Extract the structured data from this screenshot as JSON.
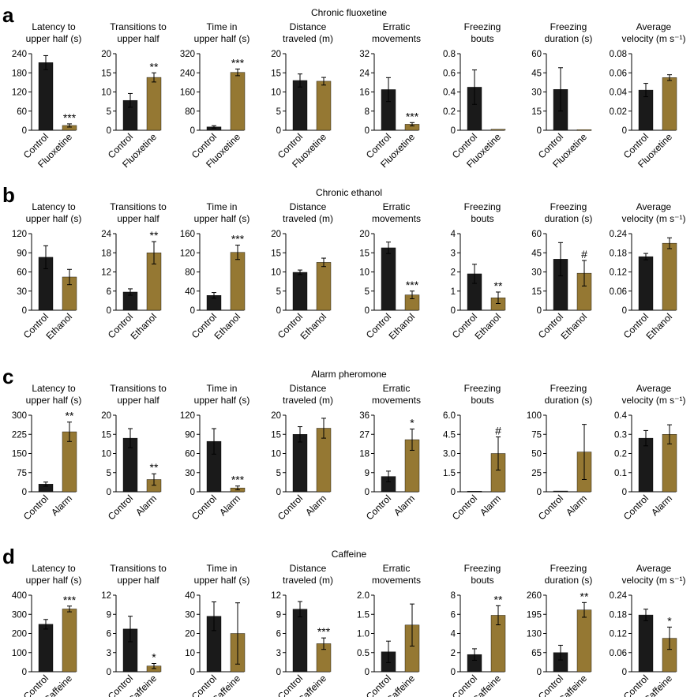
{
  "colors": {
    "control": "#1a1a1a",
    "treatment": "#957833"
  },
  "chart_data": [
    {
      "panel": "a",
      "title": "Chronic fluoxetine",
      "categories": [
        "Control",
        "Fluoxetine"
      ],
      "charts": [
        {
          "type": "bar",
          "title": "Latency to\nupper half (s)",
          "ylim": [
            0,
            240
          ],
          "ticks": [
            "0",
            "60",
            "120",
            "180",
            "240"
          ],
          "values": [
            212,
            15
          ],
          "errors": [
            22,
            5
          ],
          "annotations": [
            "",
            "***"
          ]
        },
        {
          "type": "bar",
          "title": "Transitions to\nupper half",
          "ylim": [
            0,
            20
          ],
          "ticks": [
            "0",
            "5",
            "10",
            "15",
            "20"
          ],
          "values": [
            7.8,
            13.8
          ],
          "errors": [
            1.8,
            1.2
          ],
          "annotations": [
            "",
            "**"
          ]
        },
        {
          "type": "bar",
          "title": "Time in\nupper half (s)",
          "ylim": [
            0,
            320
          ],
          "ticks": [
            "0",
            "80",
            "160",
            "240",
            "320"
          ],
          "values": [
            14,
            242
          ],
          "errors": [
            5,
            14
          ],
          "annotations": [
            "",
            "***"
          ]
        },
        {
          "type": "bar",
          "title": "Distance\ntraveled (m)",
          "ylim": [
            0,
            20
          ],
          "ticks": [
            "0",
            "5",
            "10",
            "15",
            "20"
          ],
          "values": [
            13,
            12.8
          ],
          "errors": [
            1.7,
            1.0
          ],
          "annotations": [
            "",
            ""
          ]
        },
        {
          "type": "bar",
          "title": "Erratic\nmovements",
          "ylim": [
            0,
            32
          ],
          "ticks": [
            "0",
            "8",
            "16",
            "24",
            "32"
          ],
          "values": [
            17,
            2.5
          ],
          "errors": [
            5,
            0.7
          ],
          "annotations": [
            "",
            "***"
          ]
        },
        {
          "type": "bar",
          "title": "Freezing\nbouts",
          "ylim": [
            0,
            0.8
          ],
          "ticks": [
            "0",
            "0.2",
            "0.4",
            "0.6",
            "0.8"
          ],
          "values": [
            0.45,
            0.01
          ],
          "errors": [
            0.18,
            0
          ],
          "annotations": [
            "",
            ""
          ]
        },
        {
          "type": "bar",
          "title": "Freezing\nduration (s)",
          "ylim": [
            0,
            60
          ],
          "ticks": [
            "0",
            "15",
            "30",
            "45",
            "60"
          ],
          "values": [
            32,
            0.5
          ],
          "errors": [
            17,
            0
          ],
          "annotations": [
            "",
            ""
          ]
        },
        {
          "type": "bar",
          "title": "Average\nvelocity (m s⁻¹)",
          "ylim": [
            0,
            0.08
          ],
          "ticks": [
            "0",
            "0.02",
            "0.04",
            "0.06",
            "0.08"
          ],
          "values": [
            0.042,
            0.055
          ],
          "errors": [
            0.007,
            0.003
          ],
          "annotations": [
            "",
            ""
          ]
        }
      ]
    },
    {
      "panel": "b",
      "title": "Chronic ethanol",
      "categories": [
        "Control",
        "Ethanol"
      ],
      "charts": [
        {
          "type": "bar",
          "title": "Latency to\nupper half (s)",
          "ylim": [
            0,
            120
          ],
          "ticks": [
            "0",
            "30",
            "60",
            "90",
            "120"
          ],
          "values": [
            83,
            52
          ],
          "errors": [
            18,
            12
          ],
          "annotations": [
            "",
            ""
          ]
        },
        {
          "type": "bar",
          "title": "Transitions to\nupper half",
          "ylim": [
            0,
            24
          ],
          "ticks": [
            "0",
            "6",
            "12",
            "18",
            "24"
          ],
          "values": [
            5.7,
            18
          ],
          "errors": [
            1.0,
            3.5
          ],
          "annotations": [
            "",
            "**"
          ]
        },
        {
          "type": "bar",
          "title": "Time in\nupper half (s)",
          "ylim": [
            0,
            160
          ],
          "ticks": [
            "0",
            "40",
            "80",
            "120",
            "160"
          ],
          "values": [
            31,
            121
          ],
          "errors": [
            6,
            15
          ],
          "annotations": [
            "",
            "***"
          ]
        },
        {
          "type": "bar",
          "title": "Distance\ntraveled (m)",
          "ylim": [
            0,
            20
          ],
          "ticks": [
            "0",
            "5",
            "10",
            "15",
            "20"
          ],
          "values": [
            9.9,
            12.5
          ],
          "errors": [
            0.6,
            1.1
          ],
          "annotations": [
            "",
            ""
          ]
        },
        {
          "type": "bar",
          "title": "Erratic\nmovements",
          "ylim": [
            0,
            20
          ],
          "ticks": [
            "0",
            "5",
            "10",
            "15",
            "20"
          ],
          "values": [
            16.3,
            4.0
          ],
          "errors": [
            1.5,
            1.0
          ],
          "annotations": [
            "",
            "***"
          ]
        },
        {
          "type": "bar",
          "title": "Freezing\nbouts",
          "ylim": [
            0,
            4
          ],
          "ticks": [
            "0",
            "1",
            "2",
            "3",
            "4"
          ],
          "values": [
            1.9,
            0.65
          ],
          "errors": [
            0.5,
            0.3
          ],
          "annotations": [
            "",
            "**"
          ]
        },
        {
          "type": "bar",
          "title": "Freezing\nduration (s)",
          "ylim": [
            0,
            60
          ],
          "ticks": [
            "0",
            "15",
            "30",
            "45",
            "60"
          ],
          "values": [
            40,
            29
          ],
          "errors": [
            13,
            10
          ],
          "annotations": [
            "",
            "#"
          ]
        },
        {
          "type": "bar",
          "title": "Average\nvelocity (m s⁻¹)",
          "ylim": [
            0,
            0.24
          ],
          "ticks": [
            "0",
            "0.06",
            "0.12",
            "0.18",
            "0.24"
          ],
          "values": [
            0.168,
            0.21
          ],
          "errors": [
            0.01,
            0.017
          ],
          "annotations": [
            "",
            ""
          ]
        }
      ]
    },
    {
      "panel": "c",
      "title": "Alarm pheromone",
      "categories": [
        "Control",
        "Alarm"
      ],
      "charts": [
        {
          "type": "bar",
          "title": "Latency to\nupper half (s)",
          "ylim": [
            0,
            300
          ],
          "ticks": [
            "0",
            "75",
            "150",
            "225",
            "300"
          ],
          "values": [
            30,
            235
          ],
          "errors": [
            8,
            38
          ],
          "annotations": [
            "",
            "**"
          ]
        },
        {
          "type": "bar",
          "title": "Transitions to\nupper half",
          "ylim": [
            0,
            20
          ],
          "ticks": [
            "0",
            "5",
            "10",
            "15",
            "20"
          ],
          "values": [
            14,
            3.2
          ],
          "errors": [
            2.5,
            1.5
          ],
          "annotations": [
            "",
            "**"
          ]
        },
        {
          "type": "bar",
          "title": "Time in\nupper half (s)",
          "ylim": [
            0,
            120
          ],
          "ticks": [
            "0",
            "30",
            "60",
            "90",
            "120"
          ],
          "values": [
            79,
            6
          ],
          "errors": [
            20,
            3
          ],
          "annotations": [
            "",
            "***"
          ]
        },
        {
          "type": "bar",
          "title": "Distance\ntraveled (m)",
          "ylim": [
            0,
            20
          ],
          "ticks": [
            "0",
            "5",
            "10",
            "15",
            "20"
          ],
          "values": [
            15,
            16.6
          ],
          "errors": [
            2,
            2.6
          ],
          "annotations": [
            "",
            ""
          ]
        },
        {
          "type": "bar",
          "title": "Erratic\nmovements",
          "ylim": [
            0,
            36
          ],
          "ticks": [
            "0",
            "9",
            "18",
            "27",
            "36"
          ],
          "values": [
            7.2,
            24.5
          ],
          "errors": [
            2.5,
            5
          ],
          "annotations": [
            "",
            "*"
          ]
        },
        {
          "type": "bar",
          "title": "Freezing\nbouts",
          "ylim": [
            0,
            6.0
          ],
          "ticks": [
            "0",
            "1.5",
            "3.0",
            "4.5",
            "6.0"
          ],
          "values": [
            0.05,
            3.0
          ],
          "errors": [
            0,
            1.3
          ],
          "annotations": [
            "",
            "#"
          ]
        },
        {
          "type": "bar",
          "title": "Freezing\nduration (s)",
          "ylim": [
            0,
            100
          ],
          "ticks": [
            "0",
            "25",
            "50",
            "75",
            "100"
          ],
          "values": [
            1,
            52
          ],
          "errors": [
            0,
            36
          ],
          "annotations": [
            "",
            ""
          ]
        },
        {
          "type": "bar",
          "title": "Average\nvelocity (m s⁻¹)",
          "ylim": [
            0,
            0.4
          ],
          "ticks": [
            "0",
            "0.1",
            "0.2",
            "0.3",
            "0.4"
          ],
          "values": [
            0.28,
            0.3
          ],
          "errors": [
            0.04,
            0.05
          ],
          "annotations": [
            "",
            ""
          ]
        }
      ]
    },
    {
      "panel": "d",
      "title": "Caffeine",
      "categories": [
        "Control",
        "Caffeine"
      ],
      "charts": [
        {
          "type": "bar",
          "title": "Latency to\nupper half (s)",
          "ylim": [
            0,
            400
          ],
          "ticks": [
            "0",
            "100",
            "200",
            "300",
            "400"
          ],
          "values": [
            248,
            328
          ],
          "errors": [
            25,
            15
          ],
          "annotations": [
            "",
            "***"
          ]
        },
        {
          "type": "bar",
          "title": "Transitions to\nupper half",
          "ylim": [
            0,
            12
          ],
          "ticks": [
            "0",
            "3",
            "6",
            "9",
            "12"
          ],
          "values": [
            6.7,
            0.9
          ],
          "errors": [
            2.0,
            0.4
          ],
          "annotations": [
            "",
            "*"
          ]
        },
        {
          "type": "bar",
          "title": "Time in\nupper half (s)",
          "ylim": [
            0,
            40
          ],
          "ticks": [
            "0",
            "10",
            "20",
            "30",
            "40"
          ],
          "values": [
            29,
            20
          ],
          "errors": [
            7.5,
            16
          ],
          "annotations": [
            "",
            ""
          ]
        },
        {
          "type": "bar",
          "title": "Distance\ntraveled (m)",
          "ylim": [
            0,
            12
          ],
          "ticks": [
            "0",
            "3",
            "6",
            "9",
            "12"
          ],
          "values": [
            9.8,
            4.4
          ],
          "errors": [
            1.2,
            0.9
          ],
          "annotations": [
            "",
            "***"
          ]
        },
        {
          "type": "bar",
          "title": "Erratic\nmovements",
          "ylim": [
            0,
            2.0
          ],
          "ticks": [
            "0",
            "0.5",
            "1.0",
            "1.5",
            "2.0"
          ],
          "values": [
            0.52,
            1.22
          ],
          "errors": [
            0.28,
            0.55
          ],
          "annotations": [
            "",
            ""
          ]
        },
        {
          "type": "bar",
          "title": "Freezing\nbouts",
          "ylim": [
            0,
            8
          ],
          "ticks": [
            "0",
            "2",
            "4",
            "6",
            "8"
          ],
          "values": [
            1.8,
            5.9
          ],
          "errors": [
            0.6,
            1.0
          ],
          "annotations": [
            "",
            "**"
          ]
        },
        {
          "type": "bar",
          "title": "Freezing\nduration (s)",
          "ylim": [
            0,
            260
          ],
          "ticks": [
            "0",
            "65",
            "130",
            "195",
            "260"
          ],
          "values": [
            65,
            210
          ],
          "errors": [
            25,
            25
          ],
          "annotations": [
            "",
            "**"
          ]
        },
        {
          "type": "bar",
          "title": "Average\nvelocity (m s⁻¹)",
          "ylim": [
            0,
            0.24
          ],
          "ticks": [
            "0",
            "0.06",
            "0.12",
            "0.18",
            "0.24"
          ],
          "values": [
            0.178,
            0.105
          ],
          "errors": [
            0.018,
            0.035
          ],
          "annotations": [
            "",
            "*"
          ]
        }
      ]
    }
  ]
}
